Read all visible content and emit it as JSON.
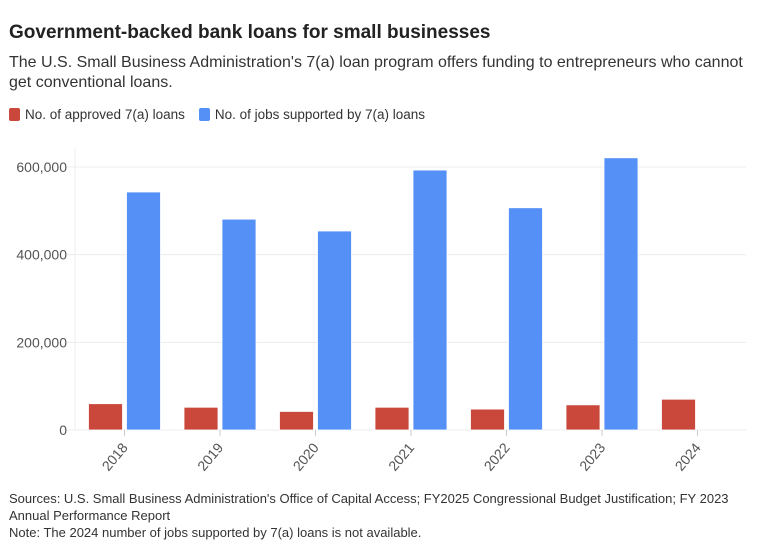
{
  "title": "Government-backed bank loans for small businesses",
  "subtitle": "The U.S. Small Business Administration's 7(a) loan program offers funding to entrepreneurs who cannot get conventional loans.",
  "sources": "Sources: U.S. Small Business Administration's Office of Capital Access; FY2025 Congressional Budget Justification; FY 2023 Annual Performance Report",
  "note": "Note: The 2024 number of jobs supported by 7(a) loans is not available.",
  "chart_data": {
    "type": "bar",
    "categories": [
      "2018",
      "2019",
      "2020",
      "2021",
      "2022",
      "2023",
      "2024"
    ],
    "series": [
      {
        "name": "No. of approved 7(a) loans",
        "color": "#c9473b",
        "values": [
          60000,
          51900,
          42300,
          51900,
          47700,
          57400,
          70200
        ]
      },
      {
        "name": "No. of jobs supported by 7(a) loans",
        "color": "#5590f7",
        "values": [
          543000,
          481000,
          454000,
          593000,
          507000,
          621000,
          null
        ]
      }
    ],
    "ylim": [
      0,
      650000
    ],
    "yticks": [
      0,
      200000,
      400000,
      600000
    ],
    "ytick_labels": [
      "0",
      "200,000",
      "400,000",
      "600,000"
    ],
    "grid": true,
    "legend": "top-left"
  }
}
